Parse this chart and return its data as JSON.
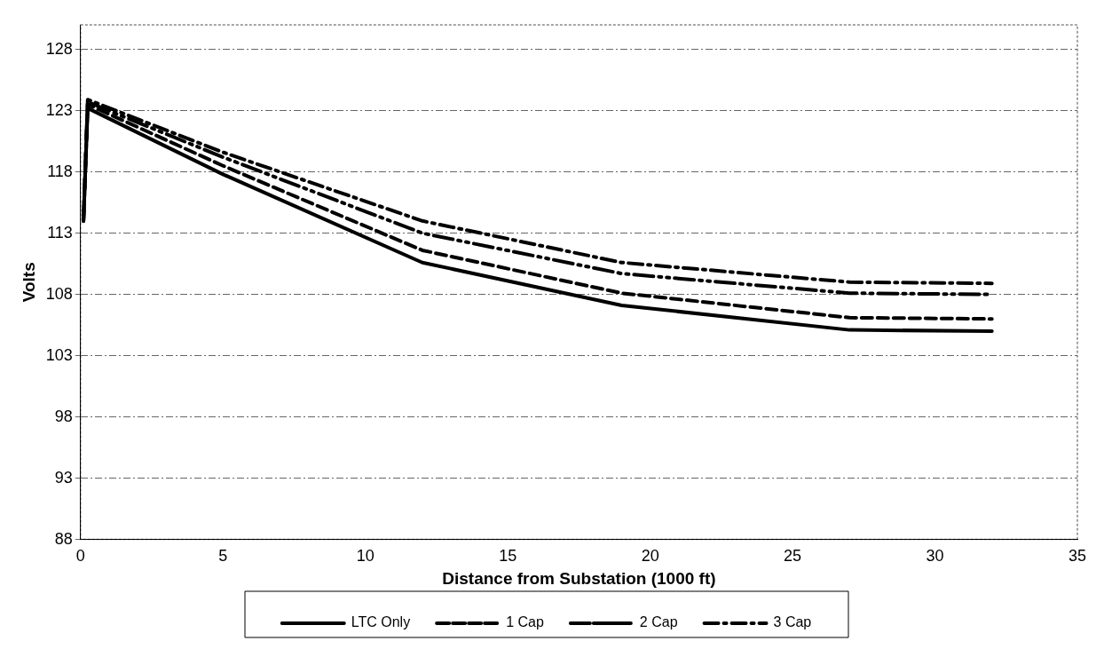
{
  "chart_data": {
    "type": "line",
    "xlabel": "Distance from Substation (1000 ft)",
    "ylabel": "Volts",
    "xlim": [
      0,
      35
    ],
    "xticks": [
      0,
      5,
      10,
      15,
      20,
      25,
      30,
      35
    ],
    "ylim": [
      88,
      130
    ],
    "yticks": [
      88,
      93,
      98,
      103,
      108,
      113,
      118,
      123,
      128
    ],
    "grid": "y",
    "legend": "bottom",
    "marker": "none",
    "x": [
      0.1,
      0.25,
      5,
      12,
      19,
      27,
      32
    ],
    "series": [
      {
        "name": "LTC Only",
        "color": "#000000",
        "line_style": "solid",
        "values": [
          114,
          123.2,
          117.8,
          110.6,
          107.1,
          105.1,
          105
        ]
      },
      {
        "name": "1 Cap",
        "color": "#000000",
        "line_style": "dashed",
        "values": [
          114,
          123.5,
          118.5,
          111.6,
          108.1,
          106.1,
          106
        ]
      },
      {
        "name": "2 Cap",
        "color": "#000000",
        "line_style": "dashed",
        "values": [
          114,
          123.7,
          119.2,
          113,
          109.7,
          108.1,
          108
        ]
      },
      {
        "name": "3 Cap",
        "color": "#000000",
        "line_style": "dashed",
        "values": [
          114,
          123.9,
          119.6,
          114,
          110.6,
          109,
          108.9
        ]
      }
    ]
  }
}
